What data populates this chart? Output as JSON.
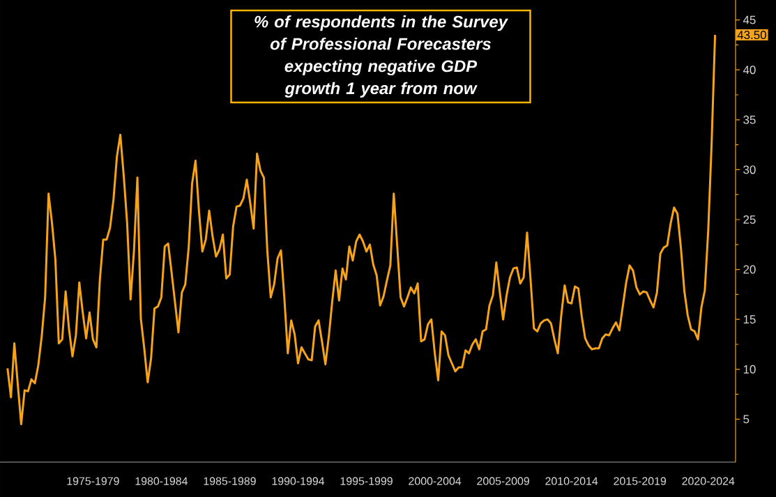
{
  "chart_data": {
    "type": "line",
    "title": "% of respondents in the Survey of Professional Forecasters expecting negative GDP growth 1 year from now",
    "annotations": [
      "43.50"
    ],
    "categories": [
      null,
      null,
      null,
      null,
      null,
      null,
      null,
      null,
      null,
      null,
      null,
      null,
      null,
      null,
      null,
      null,
      null,
      null,
      null,
      null,
      null,
      null,
      null,
      null,
      null,
      "1975-1979",
      null,
      null,
      null,
      null,
      null,
      null,
      null,
      null,
      null,
      null,
      null,
      null,
      null,
      null,
      null,
      null,
      null,
      null,
      null,
      "1980-1984",
      null,
      null,
      null,
      null,
      null,
      null,
      null,
      null,
      null,
      null,
      null,
      null,
      null,
      null,
      null,
      null,
      null,
      null,
      null,
      "1985-1989",
      null,
      null,
      null,
      null,
      null,
      null,
      null,
      null,
      null,
      null,
      null,
      null,
      null,
      null,
      null,
      null,
      null,
      null,
      null,
      "1990-1994",
      null,
      null,
      null,
      null,
      null,
      null,
      null,
      null,
      null,
      null,
      null,
      null,
      null,
      null,
      null,
      null,
      null,
      null,
      null,
      "1995-1999",
      null,
      null,
      null,
      null,
      null,
      null,
      null,
      null,
      null,
      null,
      null,
      null,
      null,
      null,
      null,
      null,
      null,
      null,
      null,
      "2000-2004",
      null,
      null,
      null,
      null,
      null,
      null,
      null,
      null,
      null,
      null,
      null,
      null,
      null,
      null,
      null,
      null,
      null,
      null,
      null,
      "2005-2009",
      null,
      null,
      null,
      null,
      null,
      null,
      null,
      null,
      null,
      null,
      null,
      null,
      null,
      null,
      null,
      null,
      null,
      null,
      null,
      "2010-2014",
      null,
      null,
      null,
      null,
      null,
      null,
      null,
      null,
      null,
      null,
      null,
      null,
      null,
      null,
      null,
      null,
      null,
      null,
      null,
      "2015-2019",
      null,
      null,
      null,
      null,
      null,
      null,
      null,
      null,
      null,
      null,
      null,
      null,
      null,
      null,
      null,
      null,
      null,
      null,
      null,
      "2020-2024",
      null,
      null
    ],
    "ylim": [
      0.7,
      47
    ],
    "yticks": [
      5,
      10,
      15,
      20,
      25,
      30,
      35,
      40,
      45
    ],
    "series": [
      {
        "color": "#f5a31a",
        "values": [
          10.1,
          7.2,
          12.6,
          8.5,
          4.5,
          7.9,
          7.8,
          9.0,
          8.6,
          10.4,
          13.3,
          17.2,
          27.6,
          24.7,
          21.0,
          12.6,
          13.0,
          17.8,
          14.0,
          11.3,
          13.4,
          18.7,
          15.7,
          13.1,
          15.7,
          13.0,
          12.2,
          18.9,
          23.0,
          23.0,
          24.2,
          27.0,
          31.3,
          33.5,
          29.4,
          24.6,
          17.0,
          21.9,
          29.2,
          15.1,
          12.1,
          8.7,
          11.1,
          16.1,
          16.3,
          17.2,
          22.3,
          22.6,
          19.7,
          16.7,
          13.7,
          17.7,
          18.5,
          22.2,
          28.6,
          30.9,
          25.9,
          21.8,
          23.0,
          25.9,
          23.3,
          21.3,
          22.0,
          23.5,
          19.1,
          19.5,
          24.3,
          26.3,
          26.4,
          27.1,
          29.0,
          26.7,
          24.1,
          31.6,
          29.9,
          29.2,
          21.9,
          17.2,
          18.5,
          21.1,
          21.9,
          17.1,
          11.6,
          14.9,
          13.5,
          10.6,
          12.2,
          11.6,
          11.0,
          10.9,
          14.3,
          14.9,
          12.8,
          10.5,
          13.3,
          16.8,
          19.9,
          16.9,
          20.1,
          19.0,
          22.3,
          20.9,
          22.8,
          23.5,
          22.8,
          21.8,
          22.5,
          20.5,
          19.4,
          16.4,
          17.3,
          18.9,
          20.4,
          27.6,
          22.4,
          17.2,
          16.3,
          17.2,
          18.2,
          17.6,
          18.6,
          12.8,
          13.0,
          14.5,
          15.0,
          11.6,
          8.9,
          13.8,
          13.4,
          11.4,
          10.6,
          9.8,
          10.2,
          10.2,
          11.9,
          11.6,
          12.5,
          13.0,
          12.0,
          13.8,
          14.0,
          16.4,
          17.4,
          20.7,
          17.8,
          15.0,
          17.4,
          19.2,
          20.1,
          20.2,
          18.6,
          19.2,
          23.7,
          19.1,
          14.1,
          13.8,
          14.6,
          14.9,
          15.0,
          14.6,
          13.0,
          11.6,
          15.4,
          18.4,
          16.7,
          16.6,
          18.3,
          18.1,
          15.3,
          13.1,
          12.4,
          12.0,
          12.1,
          12.1,
          13.1,
          13.5,
          13.4,
          14.1,
          14.7,
          13.9,
          16.3,
          18.7,
          20.4,
          19.9,
          18.2,
          17.5,
          17.8,
          17.7,
          16.9,
          16.2,
          17.7,
          21.6,
          22.2,
          22.4,
          24.6,
          26.2,
          25.6,
          22.2,
          17.9,
          15.4,
          14.0,
          13.8,
          13.0,
          16.2,
          17.9,
          23.9,
          32.7,
          43.5
        ]
      }
    ]
  }
}
